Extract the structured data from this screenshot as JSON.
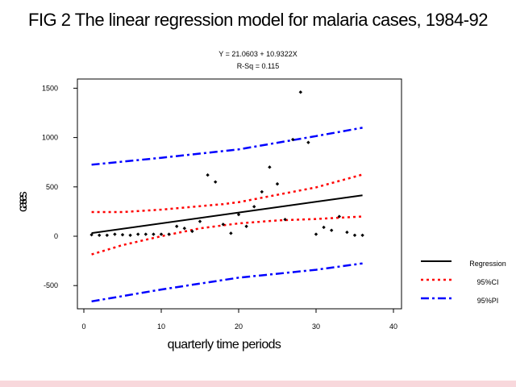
{
  "title": "FIG 2 The linear regression model for malaria cases, 1984-92",
  "equation": "Y = 21.0603 + 10.9322X",
  "rsq": "R-Sq = 0.115",
  "chart_data": {
    "type": "scatter",
    "title": "FIG 2 The linear regression model for malaria cases, 1984-92",
    "xlabel": "quarterly time periods",
    "ylabel": "cases",
    "xlim": [
      -1,
      40
    ],
    "ylim": [
      -700,
      1570
    ],
    "xticks": [
      0,
      10,
      20,
      30,
      40
    ],
    "yticks": [
      -500,
      0,
      500,
      1000,
      1500
    ],
    "regression": {
      "intercept": 21.0603,
      "slope": 10.9322
    },
    "fit_range": [
      1,
      36
    ],
    "points": {
      "x": [
        1,
        2,
        3,
        4,
        5,
        6,
        7,
        8,
        9,
        10,
        11,
        12,
        13,
        14,
        15,
        16,
        17,
        18,
        19,
        20,
        21,
        22,
        23,
        24,
        25,
        26,
        27,
        28,
        29,
        30,
        31,
        32,
        33,
        34,
        35,
        36
      ],
      "y": [
        15,
        10,
        10,
        20,
        15,
        10,
        20,
        20,
        20,
        20,
        20,
        100,
        80,
        50,
        150,
        620,
        550,
        120,
        30,
        220,
        100,
        300,
        450,
        700,
        530,
        170,
        980,
        1460,
        950,
        20,
        90,
        60,
        200,
        40,
        10,
        10
      ]
    },
    "series": [
      {
        "name": "Regression",
        "color": "#000000",
        "style": "solid",
        "x": [
          1,
          36
        ],
        "y": [
          32,
          415
        ]
      },
      {
        "name": "95%CI",
        "color": "#ff0000",
        "style": "dotted",
        "x": [
          1,
          5,
          10,
          15,
          18,
          20,
          25,
          30,
          36
        ],
        "y": [
          245,
          245,
          270,
          305,
          325,
          345,
          420,
          495,
          625
        ]
      },
      {
        "name": "95%CI",
        "color": "#ff0000",
        "style": "dotted",
        "x": [
          1,
          5,
          10,
          15,
          18,
          20,
          25,
          30,
          36
        ],
        "y": [
          -185,
          -90,
          0,
          80,
          110,
          130,
          160,
          175,
          200
        ]
      },
      {
        "name": "95%PI",
        "color": "#0000ff",
        "style": "dashdot",
        "x": [
          1,
          10,
          20,
          30,
          36
        ],
        "y": [
          725,
          795,
          880,
          1015,
          1100
        ]
      },
      {
        "name": "95%PI",
        "color": "#0000ff",
        "style": "dashdot",
        "x": [
          1,
          10,
          20,
          30,
          36
        ],
        "y": [
          -660,
          -540,
          -420,
          -340,
          -275
        ]
      }
    ],
    "legend": [
      {
        "label": "Regression",
        "color": "#000000",
        "style": "solid"
      },
      {
        "label": "95%CI",
        "color": "#ff0000",
        "style": "dotted"
      },
      {
        "label": "95%PI",
        "color": "#0000ff",
        "style": "dashdot"
      }
    ]
  }
}
